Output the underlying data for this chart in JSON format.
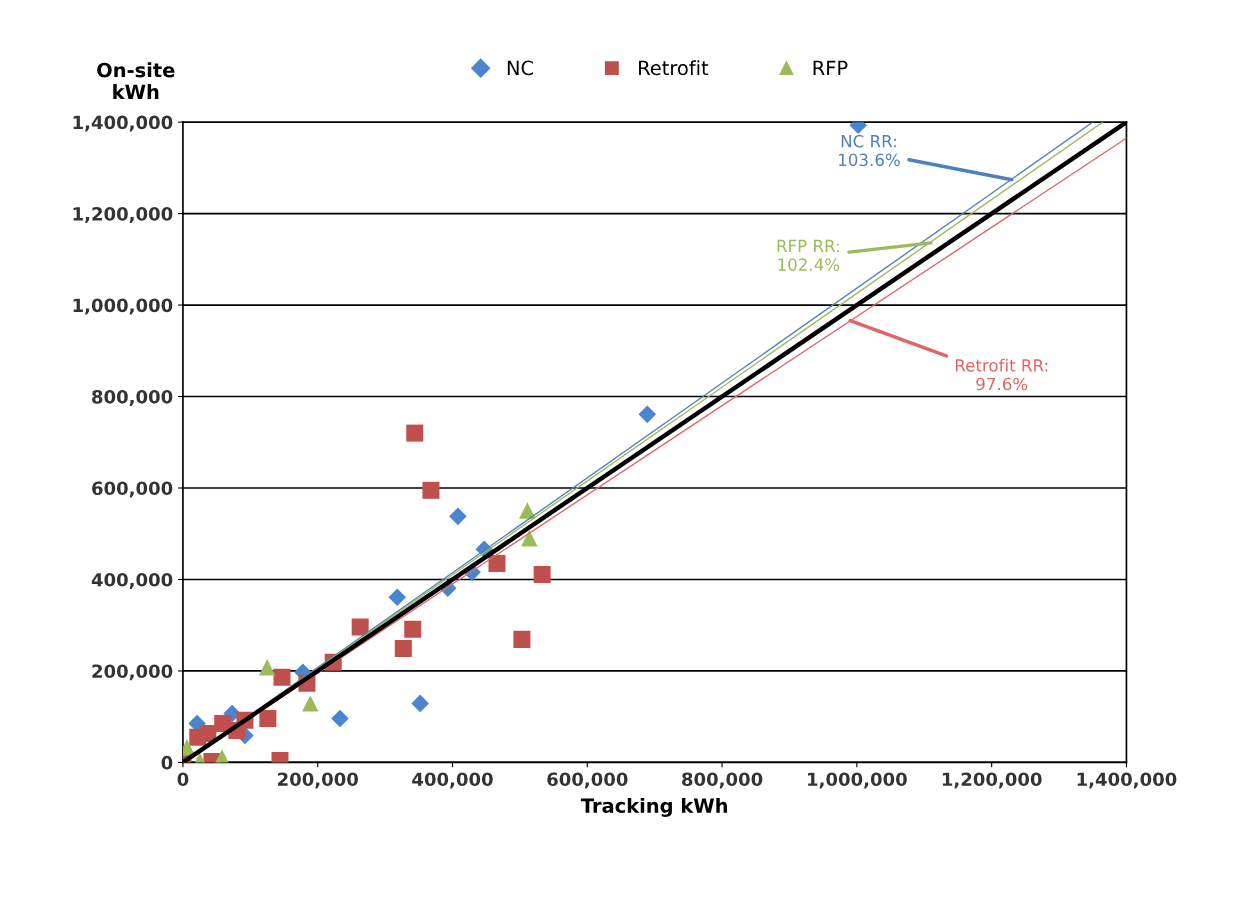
{
  "chart_data": {
    "type": "scatter",
    "xlabel": "Tracking kWh",
    "ylabel": "On-site\nkWh",
    "xlim": [
      0,
      1400000
    ],
    "ylim": [
      0,
      1400000
    ],
    "xticks": [
      {
        "value": 0,
        "label": "0"
      },
      {
        "value": 200000,
        "label": "200,000"
      },
      {
        "value": 400000,
        "label": "400,000"
      },
      {
        "value": 600000,
        "label": "600,000"
      },
      {
        "value": 800000,
        "label": "800,000"
      },
      {
        "value": 1000000,
        "label": "1,000,000"
      },
      {
        "value": 1200000,
        "label": "1,200,000"
      },
      {
        "value": 1400000,
        "label": "1,400,000"
      }
    ],
    "yticks": [
      {
        "value": 0,
        "label": "0"
      },
      {
        "value": 200000,
        "label": "200,000"
      },
      {
        "value": 400000,
        "label": "400,000"
      },
      {
        "value": 600000,
        "label": "600,000"
      },
      {
        "value": 800000,
        "label": "800,000"
      },
      {
        "value": 1000000,
        "label": "1,000,000"
      },
      {
        "value": 1200000,
        "label": "1,200,000"
      },
      {
        "value": 1400000,
        "label": "1,400,000"
      }
    ],
    "grid": "y",
    "legend": "top",
    "series": [
      {
        "name": "NC",
        "color": "#4a86d0",
        "marker": "diamond",
        "x": [
          1002000,
          689000,
          408000,
          447000,
          429000,
          393000,
          318000,
          352000,
          233000,
          178000,
          21000,
          73000,
          92000
        ],
        "values": [
          1393000,
          761000,
          538000,
          466000,
          416000,
          381000,
          361000,
          129000,
          96000,
          197000,
          85000,
          107000,
          59000
        ]
      },
      {
        "name": "Retrofit",
        "color": "#c0504d",
        "marker": "square",
        "x": [
          344000,
          368000,
          466000,
          533000,
          503000,
          263000,
          341000,
          327000,
          223000,
          184000,
          147000,
          144000,
          126000,
          92000,
          59000,
          80000,
          37000,
          0,
          43000,
          22000
        ],
        "values": [
          720000,
          595000,
          435000,
          411000,
          269000,
          296000,
          291000,
          249000,
          219000,
          173000,
          186000,
          4000,
          96000,
          92000,
          85000,
          70000,
          63000,
          3000,
          2000,
          55000
        ]
      },
      {
        "name": "RFP",
        "color": "#9bbb59",
        "marker": "triangle",
        "x": [
          511000,
          514000,
          189000,
          125000,
          6000,
          25000,
          58000
        ],
        "values": [
          551000,
          490000,
          129000,
          208000,
          33000,
          4000,
          11000
        ]
      },
      {
        "type": "line",
        "color": "#4f81bd",
        "x": [
          0,
          1350000
        ],
        "values": [
          0,
          1400000
        ]
      },
      {
        "type": "line",
        "color": "#9bbb59",
        "x": [
          0,
          1365000
        ],
        "values": [
          0,
          1400000
        ]
      },
      {
        "type": "line",
        "color": "#e06666",
        "x": [
          0,
          1400000
        ],
        "values": [
          0,
          1365000
        ]
      },
      {
        "type": "line",
        "color": "#000000",
        "x": [
          0,
          1400000
        ],
        "values": [
          0,
          1400000
        ]
      }
    ],
    "annotations": [
      {
        "text": "NC RR:\n103.6%",
        "x": 1230000,
        "y": 1274000
      },
      {
        "text": "RFP RR:\n102.4%",
        "x": 1110000,
        "y": 1136000
      },
      {
        "text": "Retrofit RR:\n97.6%",
        "x": 990000,
        "y": 966000
      }
    ]
  }
}
